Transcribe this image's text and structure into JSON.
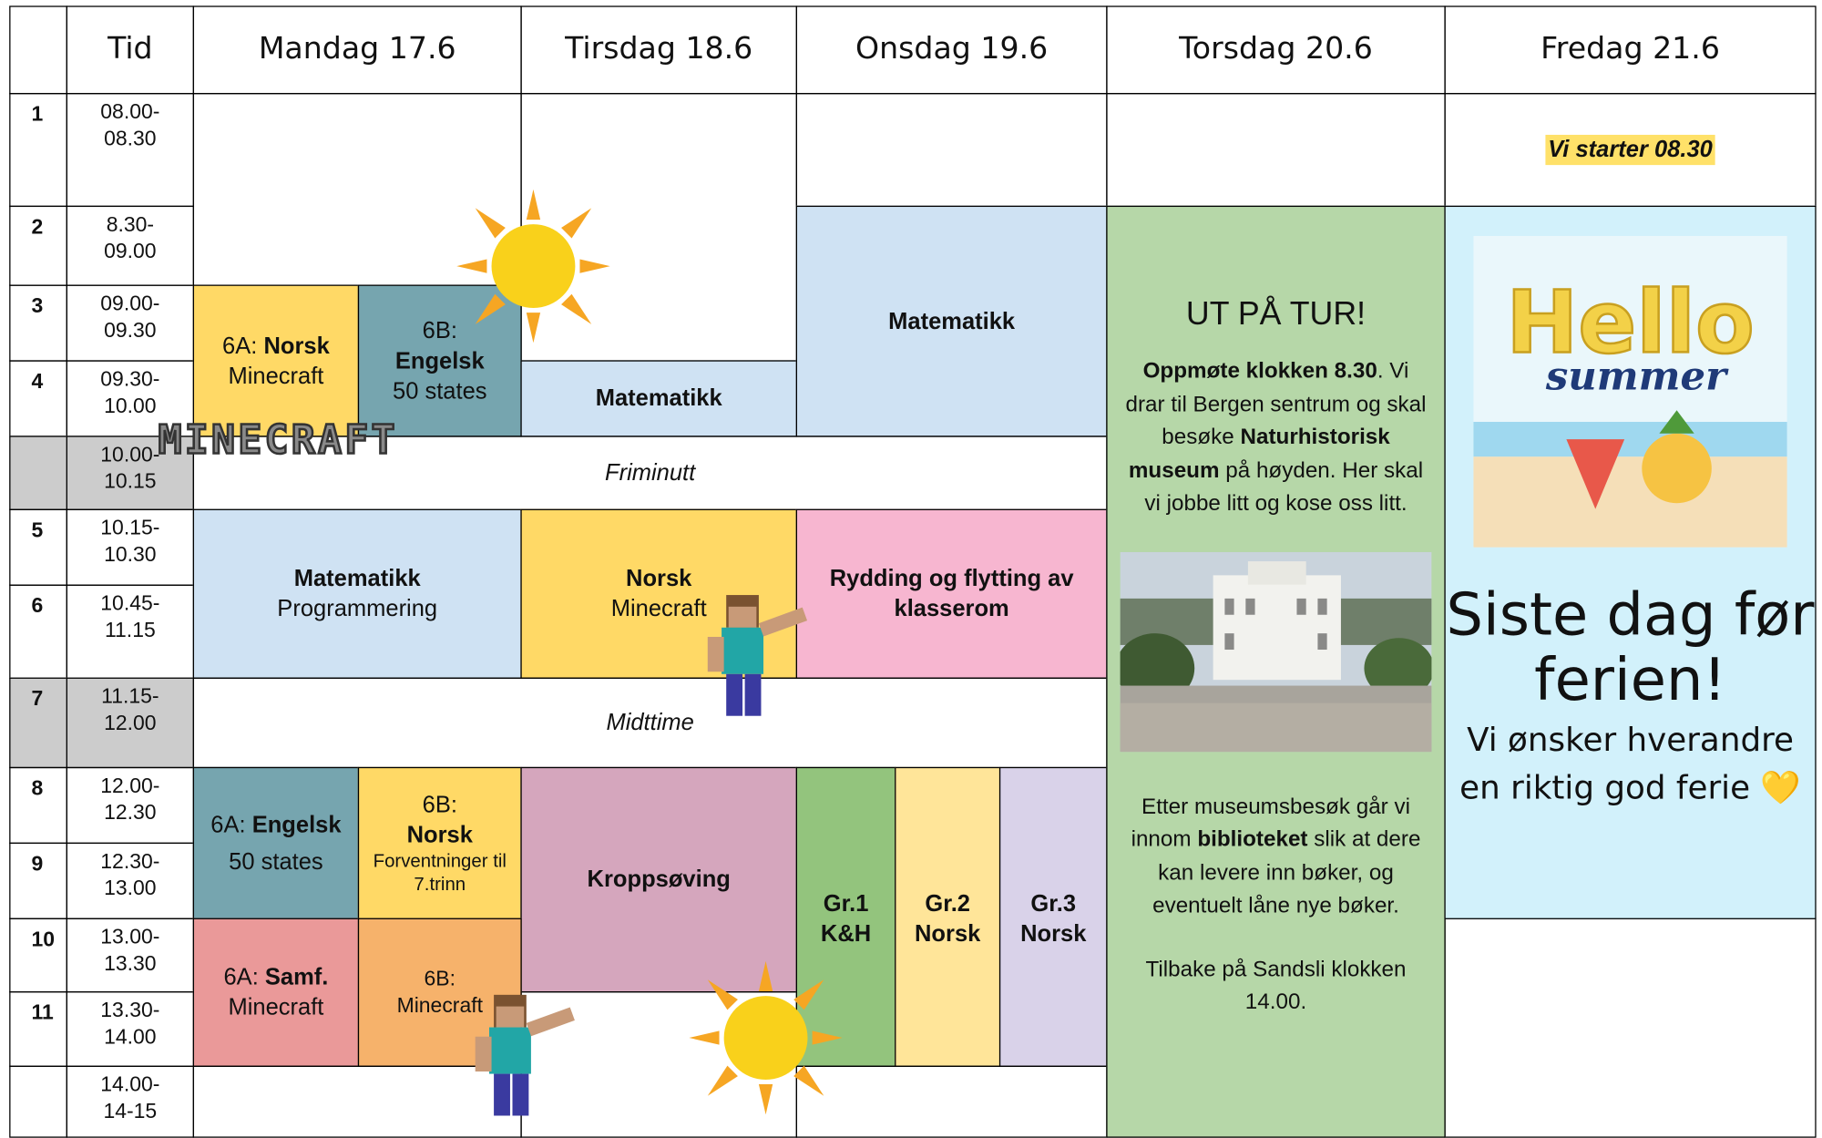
{
  "header": {
    "time": "Tid",
    "days": [
      "Mandag 17.6",
      "Tirsdag 18.6",
      "Onsdag 19.6",
      "Torsdag 20.6",
      "Fredag 21.6"
    ]
  },
  "periods": [
    {
      "number": "1",
      "time": [
        "08.00-",
        "08.30"
      ]
    },
    {
      "number": "2",
      "time": [
        "8.30-",
        "09.00"
      ]
    },
    {
      "number": "3",
      "time": [
        "09.00-",
        "09.30"
      ]
    },
    {
      "number": "4",
      "time": [
        "09.30-",
        "10.00"
      ]
    },
    {
      "time": [
        "10.00-",
        "10.15"
      ]
    },
    {
      "number": "5",
      "time": [
        "10.15-",
        "10.30"
      ]
    },
    {
      "number": "6",
      "time": [
        "10.45-",
        "11.15"
      ]
    },
    {
      "number": "7",
      "time": [
        "11.15-",
        "12.00"
      ]
    },
    {
      "number": "8",
      "time": [
        "12.00-",
        "12.30"
      ]
    },
    {
      "number": "9",
      "time": [
        "12.30-",
        "13.00"
      ]
    },
    {
      "number": "10",
      "time": [
        "13.00-",
        "13.30"
      ]
    },
    {
      "number": "11",
      "time": [
        "13.30-",
        "14.00"
      ]
    },
    {
      "time": [
        "14.00-",
        "14-15"
      ]
    }
  ],
  "lessons": {
    "fri_start": "Vi starter 08.30",
    "mon_6a_norsk": {
      "group": "6A:",
      "subject": "Norsk",
      "topic": "Minecraft"
    },
    "mon_6b_engelsk": {
      "group": "6B:",
      "subject": "Engelsk",
      "topic": "50 states"
    },
    "tue_math": "Matematikk",
    "wed_math": "Matematikk",
    "break": "Friminutt",
    "mon_math": {
      "subject": "Matematikk",
      "topic": "Programmering"
    },
    "tue_norsk": {
      "subject": "Norsk",
      "topic": "Minecraft"
    },
    "wed_cleanup": "Rydding og flytting av klasserom",
    "lunch": "Midttime",
    "mon_6a_engelsk": {
      "group": "6A:",
      "subject": "Engelsk",
      "topic": "50 states"
    },
    "mon_6b_norsk": {
      "group": "6B:",
      "subject": "Norsk",
      "topic": "Forventninger til 7.trinn"
    },
    "tue_gym": "Kroppsøving",
    "wed_gr1": {
      "group": "Gr.1",
      "subject": "K&H"
    },
    "wed_gr2": {
      "group": "Gr.2",
      "subject": "Norsk"
    },
    "wed_gr3": {
      "group": "Gr.3",
      "subject": "Norsk"
    },
    "mon_6a_samf": {
      "group": "6A:",
      "subject": "Samf.",
      "topic": "Minecraft"
    },
    "mon_6b_minecraft": {
      "group": "6B:",
      "topic": "Minecraft"
    }
  },
  "thursday": {
    "title": "UT PÅ TUR!",
    "intro": [
      "Oppmøte klokken 8.30",
      ". Vi drar til Bergen sentrum og skal besøke ",
      "Naturhistorisk museum",
      " på høyden. Her skal vi jobbe litt og kose oss litt."
    ],
    "after": [
      "Etter museumsbesøk går vi innom ",
      "biblioteket",
      " slik at dere kan levere inn bøker, og eventuelt låne nye bøker."
    ],
    "back": "Tilbake på Sandsli klokken 14.00."
  },
  "friday": {
    "image_title": "Hello",
    "image_subtitle": "summer",
    "headline": "Siste dag før ferien!",
    "message": "Vi ønsker hverandre en riktig god ferie 💛"
  },
  "logo": "MINECRAFT"
}
